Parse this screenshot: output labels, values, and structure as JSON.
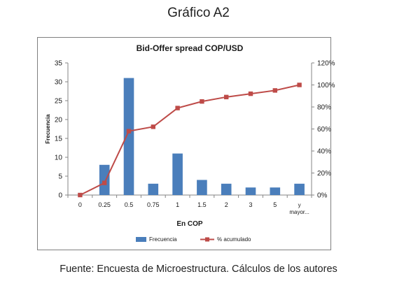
{
  "page": {
    "heading": "Gráfico A2",
    "caption": "Fuente: Encuesta de Microestructura. Cálculos de los autores"
  },
  "chart_data": {
    "type": "bar",
    "title": "Bid-Offer spread COP/USD",
    "xlabel": "En COP",
    "ylabel": "Frecuencia",
    "categories": [
      "0",
      "0.25",
      "0.5",
      "0.75",
      "1",
      "1.5",
      "2",
      "3",
      "5",
      "y mayor..."
    ],
    "category_lines": [
      [
        "0"
      ],
      [
        "0.25"
      ],
      [
        "0.5"
      ],
      [
        "0.75"
      ],
      [
        "1"
      ],
      [
        "1.5"
      ],
      [
        "2"
      ],
      [
        "3"
      ],
      [
        "5"
      ],
      [
        "y",
        "mayor..."
      ]
    ],
    "series": [
      {
        "name": "Frecuencia",
        "type": "bar",
        "axis": "left",
        "values": [
          0,
          8,
          31,
          3,
          11,
          4,
          3,
          2,
          2,
          3
        ],
        "color": "#4a7ebb"
      },
      {
        "name": "% acumulado",
        "type": "line",
        "axis": "right",
        "values": [
          0,
          11,
          58,
          62,
          79,
          85,
          89,
          92,
          95,
          100
        ],
        "color": "#be4b48"
      }
    ],
    "ylim": [
      0,
      35
    ],
    "yticks": [
      0,
      5,
      10,
      15,
      20,
      25,
      30,
      35
    ],
    "y2lim": [
      0,
      120
    ],
    "y2ticks": [
      0,
      20,
      40,
      60,
      80,
      100,
      120
    ],
    "y2tick_labels": [
      "0%",
      "20%",
      "40%",
      "60%",
      "80%",
      "100%",
      "120%"
    ],
    "grid": false,
    "legend_position": "bottom"
  }
}
